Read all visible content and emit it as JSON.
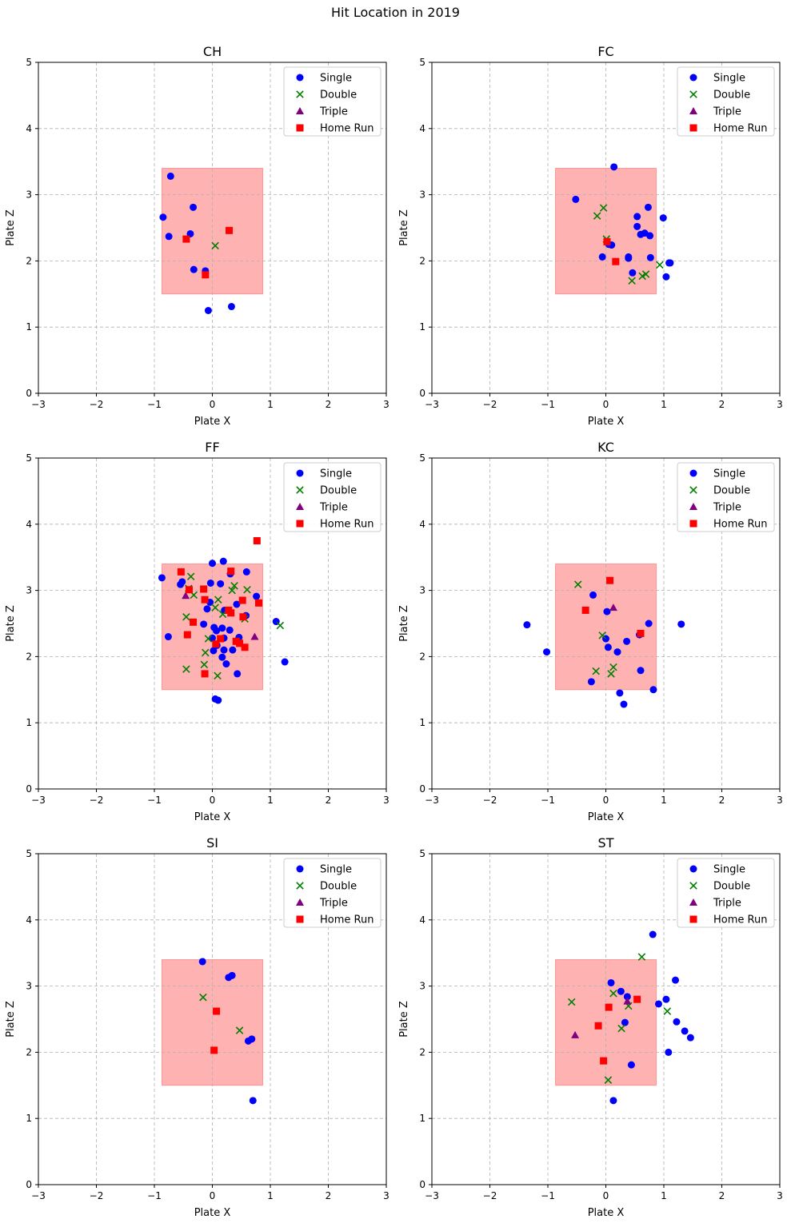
{
  "figure": {
    "suptitle": "Hit Location in 2019"
  },
  "colors": {
    "Single": "#0000ff",
    "Double": "#008000",
    "Triple": "#800080",
    "Home Run": "#ff0000",
    "strike_zone": "#ff0000",
    "grid": "#b0b0b0"
  },
  "legend": {
    "placement": "top-right",
    "entries": [
      {
        "label": "Single",
        "marker": "circle"
      },
      {
        "label": "Double",
        "marker": "x"
      },
      {
        "label": "Triple",
        "marker": "triangle"
      },
      {
        "label": "Home Run",
        "marker": "square"
      }
    ]
  },
  "chart_data": [
    {
      "type": "scatter",
      "title": "CH",
      "xlabel": "Plate X",
      "ylabel": "Plate Z",
      "xlim": [
        -3,
        3
      ],
      "ylim": [
        0,
        5
      ],
      "xticks": [
        -3,
        -2,
        -1,
        0,
        1,
        2,
        3
      ],
      "yticks": [
        0,
        1,
        2,
        3,
        4,
        5
      ],
      "grid": true,
      "strike_zone": {
        "x": [
          -0.87,
          0.87
        ],
        "z": [
          1.5,
          3.4
        ]
      },
      "series": [
        {
          "name": "Single",
          "points": [
            [
              -0.72,
              3.28
            ],
            [
              -0.85,
              2.66
            ],
            [
              -0.75,
              2.37
            ],
            [
              -0.33,
              2.81
            ],
            [
              -0.38,
              2.41
            ],
            [
              -0.32,
              1.87
            ],
            [
              -0.12,
              1.85
            ],
            [
              -0.07,
              1.25
            ],
            [
              0.33,
              1.31
            ]
          ]
        },
        {
          "name": "Double",
          "points": [
            [
              0.05,
              2.23
            ]
          ]
        },
        {
          "name": "Triple",
          "points": []
        },
        {
          "name": "Home Run",
          "points": [
            [
              -0.45,
              2.33
            ],
            [
              0.29,
              2.46
            ],
            [
              -0.12,
              1.79
            ]
          ]
        }
      ]
    },
    {
      "type": "scatter",
      "title": "FC",
      "xlabel": "Plate X",
      "ylabel": "Plate Z",
      "xlim": [
        -3,
        3
      ],
      "ylim": [
        0,
        5
      ],
      "xticks": [
        -3,
        -2,
        -1,
        0,
        1,
        2,
        3
      ],
      "yticks": [
        0,
        1,
        2,
        3,
        4,
        5
      ],
      "grid": true,
      "strike_zone": {
        "x": [
          -0.87,
          0.87
        ],
        "z": [
          1.5,
          3.4
        ]
      },
      "series": [
        {
          "name": "Single",
          "points": [
            [
              0.14,
              3.42
            ],
            [
              -0.52,
              2.93
            ],
            [
              0.73,
              2.81
            ],
            [
              0.99,
              2.65
            ],
            [
              0.54,
              2.67
            ],
            [
              0.54,
              2.52
            ],
            [
              0.6,
              2.4
            ],
            [
              0.67,
              2.42
            ],
            [
              0.76,
              2.38
            ],
            [
              0.1,
              2.24
            ],
            [
              0.05,
              2.25
            ],
            [
              -0.06,
              2.06
            ],
            [
              0.39,
              2.06
            ],
            [
              0.39,
              2.04
            ],
            [
              0.77,
              2.05
            ],
            [
              1.09,
              1.97
            ],
            [
              1.11,
              1.97
            ],
            [
              0.46,
              1.82
            ],
            [
              1.04,
              1.76
            ]
          ]
        },
        {
          "name": "Double",
          "points": [
            [
              -0.15,
              2.68
            ],
            [
              -0.04,
              2.8
            ],
            [
              0.01,
              2.33
            ],
            [
              0.93,
              1.94
            ],
            [
              0.45,
              1.7
            ],
            [
              0.63,
              1.77
            ],
            [
              0.69,
              1.8
            ]
          ]
        },
        {
          "name": "Triple",
          "points": []
        },
        {
          "name": "Home Run",
          "points": [
            [
              0.02,
              2.29
            ],
            [
              0.17,
              1.99
            ]
          ]
        }
      ]
    },
    {
      "type": "scatter",
      "title": "FF",
      "xlabel": "Plate X",
      "ylabel": "Plate Z",
      "xlim": [
        -3,
        3
      ],
      "ylim": [
        0,
        5
      ],
      "xticks": [
        -3,
        -2,
        -1,
        0,
        1,
        2,
        3
      ],
      "yticks": [
        0,
        1,
        2,
        3,
        4,
        5
      ],
      "grid": true,
      "strike_zone": {
        "x": [
          -0.87,
          0.87
        ],
        "z": [
          1.5,
          3.4
        ]
      },
      "series": [
        {
          "name": "Single",
          "points": [
            [
              -0.87,
              3.19
            ],
            [
              -0.55,
              3.09
            ],
            [
              -0.52,
              3.13
            ],
            [
              0.0,
              3.41
            ],
            [
              0.19,
              3.44
            ],
            [
              0.59,
              3.28
            ],
            [
              0.31,
              3.25
            ],
            [
              -0.03,
              3.11
            ],
            [
              0.14,
              3.1
            ],
            [
              0.76,
              2.91
            ],
            [
              -0.04,
              2.82
            ],
            [
              0.42,
              2.79
            ],
            [
              -0.09,
              2.72
            ],
            [
              0.21,
              2.7
            ],
            [
              -0.76,
              2.3
            ],
            [
              -0.15,
              2.49
            ],
            [
              0.03,
              2.44
            ],
            [
              0.07,
              2.39
            ],
            [
              0.17,
              2.43
            ],
            [
              0.3,
              2.4
            ],
            [
              0.58,
              2.62
            ],
            [
              0.46,
              2.29
            ],
            [
              0.0,
              2.28
            ],
            [
              0.2,
              2.28
            ],
            [
              1.1,
              2.53
            ],
            [
              0.08,
              2.17
            ],
            [
              0.02,
              2.09
            ],
            [
              0.2,
              2.1
            ],
            [
              0.35,
              2.1
            ],
            [
              0.17,
              1.99
            ],
            [
              0.24,
              1.89
            ],
            [
              0.43,
              1.74
            ],
            [
              1.25,
              1.92
            ],
            [
              0.05,
              1.36
            ],
            [
              0.1,
              1.34
            ]
          ]
        },
        {
          "name": "Double",
          "points": [
            [
              -0.37,
              3.21
            ],
            [
              -0.41,
              3.03
            ],
            [
              -0.32,
              2.93
            ],
            [
              0.38,
              3.07
            ],
            [
              0.34,
              3.0
            ],
            [
              0.6,
              3.01
            ],
            [
              0.1,
              2.86
            ],
            [
              0.18,
              2.64
            ],
            [
              0.05,
              2.74
            ],
            [
              0.56,
              2.57
            ],
            [
              -0.45,
              2.6
            ],
            [
              -0.07,
              2.27
            ],
            [
              -0.12,
              2.06
            ],
            [
              -0.14,
              1.88
            ],
            [
              -0.45,
              1.81
            ],
            [
              0.09,
              1.71
            ],
            [
              1.17,
              2.47
            ]
          ]
        },
        {
          "name": "Triple",
          "points": [
            [
              -0.46,
              2.92
            ],
            [
              0.73,
              2.3
            ]
          ]
        },
        {
          "name": "Home Run",
          "points": [
            [
              0.77,
              3.75
            ],
            [
              -0.54,
              3.28
            ],
            [
              0.32,
              3.29
            ],
            [
              -0.4,
              3.01
            ],
            [
              -0.15,
              3.02
            ],
            [
              -0.13,
              2.86
            ],
            [
              0.8,
              2.81
            ],
            [
              0.52,
              2.85
            ],
            [
              0.28,
              2.7
            ],
            [
              0.32,
              2.66
            ],
            [
              0.53,
              2.6
            ],
            [
              -0.33,
              2.52
            ],
            [
              -0.43,
              2.33
            ],
            [
              0.41,
              2.23
            ],
            [
              0.06,
              2.19
            ],
            [
              0.47,
              2.2
            ],
            [
              0.56,
              2.14
            ],
            [
              0.14,
              2.27
            ],
            [
              -0.13,
              1.74
            ]
          ]
        }
      ]
    },
    {
      "type": "scatter",
      "title": "KC",
      "xlabel": "Plate X",
      "ylabel": "Plate Z",
      "xlim": [
        -3,
        3
      ],
      "ylim": [
        0,
        5
      ],
      "xticks": [
        -3,
        -2,
        -1,
        0,
        1,
        2,
        3
      ],
      "yticks": [
        0,
        1,
        2,
        3,
        4,
        5
      ],
      "grid": true,
      "strike_zone": {
        "x": [
          -0.87,
          0.87
        ],
        "z": [
          1.5,
          3.4
        ]
      },
      "series": [
        {
          "name": "Single",
          "points": [
            [
              -1.36,
              2.48
            ],
            [
              -1.02,
              2.07
            ],
            [
              -0.22,
              2.93
            ],
            [
              0.02,
              2.68
            ],
            [
              0.74,
              2.5
            ],
            [
              1.3,
              2.49
            ],
            [
              0.58,
              2.33
            ],
            [
              0.0,
              2.27
            ],
            [
              0.36,
              2.23
            ],
            [
              0.04,
              2.14
            ],
            [
              0.2,
              2.07
            ],
            [
              0.6,
              1.79
            ],
            [
              -0.25,
              1.62
            ],
            [
              0.24,
              1.45
            ],
            [
              0.82,
              1.5
            ],
            [
              0.31,
              1.28
            ]
          ]
        },
        {
          "name": "Double",
          "points": [
            [
              -0.48,
              3.09
            ],
            [
              -0.06,
              2.32
            ],
            [
              -0.17,
              1.78
            ],
            [
              0.13,
              1.84
            ],
            [
              0.09,
              1.74
            ]
          ]
        },
        {
          "name": "Triple",
          "points": [
            [
              0.13,
              2.74
            ]
          ]
        },
        {
          "name": "Home Run",
          "points": [
            [
              0.07,
              3.15
            ],
            [
              -0.35,
              2.7
            ],
            [
              0.6,
              2.35
            ]
          ]
        }
      ]
    },
    {
      "type": "scatter",
      "title": "SI",
      "xlabel": "Plate X",
      "ylabel": "Plate Z",
      "xlim": [
        -3,
        3
      ],
      "ylim": [
        0,
        5
      ],
      "xticks": [
        -3,
        -2,
        -1,
        0,
        1,
        2,
        3
      ],
      "yticks": [
        0,
        1,
        2,
        3,
        4,
        5
      ],
      "grid": true,
      "strike_zone": {
        "x": [
          -0.87,
          0.87
        ],
        "z": [
          1.5,
          3.4
        ]
      },
      "series": [
        {
          "name": "Single",
          "points": [
            [
              -0.17,
              3.37
            ],
            [
              0.28,
              3.13
            ],
            [
              0.34,
              3.16
            ],
            [
              0.62,
              2.17
            ],
            [
              0.68,
              2.2
            ],
            [
              0.7,
              1.27
            ]
          ]
        },
        {
          "name": "Double",
          "points": [
            [
              -0.16,
              2.83
            ],
            [
              0.47,
              2.33
            ]
          ]
        },
        {
          "name": "Triple",
          "points": []
        },
        {
          "name": "Home Run",
          "points": [
            [
              0.07,
              2.62
            ],
            [
              0.03,
              2.03
            ]
          ]
        }
      ]
    },
    {
      "type": "scatter",
      "title": "ST",
      "xlabel": "Plate X",
      "ylabel": "Plate Z",
      "xlim": [
        -3,
        3
      ],
      "ylim": [
        0,
        5
      ],
      "xticks": [
        -3,
        -2,
        -1,
        0,
        1,
        2,
        3
      ],
      "yticks": [
        0,
        1,
        2,
        3,
        4,
        5
      ],
      "grid": true,
      "strike_zone": {
        "x": [
          -0.87,
          0.87
        ],
        "z": [
          1.5,
          3.4
        ]
      },
      "series": [
        {
          "name": "Single",
          "points": [
            [
              0.81,
              3.78
            ],
            [
              1.2,
              3.09
            ],
            [
              0.09,
              3.05
            ],
            [
              0.26,
              2.92
            ],
            [
              0.37,
              2.84
            ],
            [
              0.91,
              2.73
            ],
            [
              1.04,
              2.8
            ],
            [
              1.22,
              2.46
            ],
            [
              1.36,
              2.32
            ],
            [
              1.46,
              2.22
            ],
            [
              0.33,
              2.45
            ],
            [
              1.08,
              2.0
            ],
            [
              0.44,
              1.81
            ],
            [
              0.13,
              1.27
            ]
          ]
        },
        {
          "name": "Double",
          "points": [
            [
              0.62,
              3.44
            ],
            [
              0.13,
              2.89
            ],
            [
              -0.59,
              2.76
            ],
            [
              0.39,
              2.7
            ],
            [
              1.06,
              2.62
            ],
            [
              0.27,
              2.36
            ],
            [
              0.04,
              1.58
            ]
          ]
        },
        {
          "name": "Triple",
          "points": [
            [
              0.37,
              2.77
            ],
            [
              -0.53,
              2.26
            ]
          ]
        },
        {
          "name": "Home Run",
          "points": [
            [
              0.54,
              2.8
            ],
            [
              0.05,
              2.68
            ],
            [
              -0.13,
              2.4
            ],
            [
              -0.04,
              1.87
            ]
          ]
        }
      ]
    }
  ]
}
